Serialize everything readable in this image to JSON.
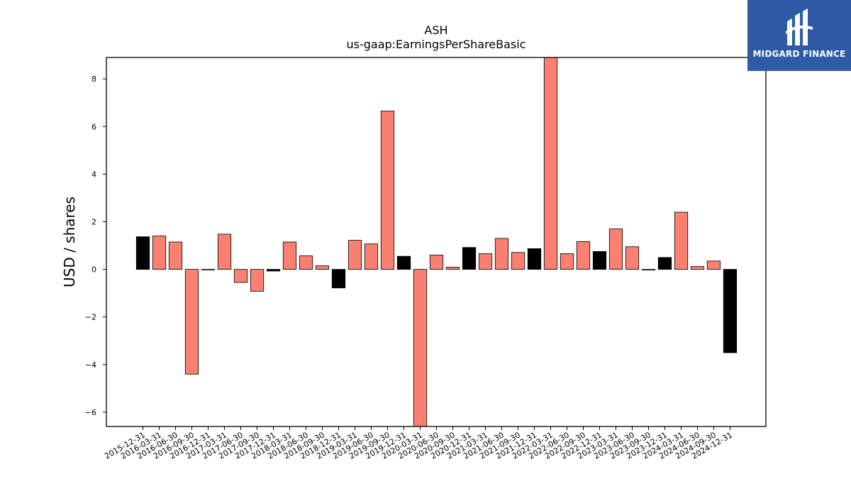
{
  "brand": {
    "name": "MIDGARD FINANCE",
    "background": "#2f5aa8"
  },
  "chart_data": {
    "type": "bar",
    "title": "ASH",
    "subtitle": "us-gaap:EarningsPerShareBasic",
    "xlabel": "",
    "ylabel": "USD / shares",
    "ylim": [
      -6.6,
      8.9
    ],
    "yticks": [
      -6,
      -4,
      -2,
      0,
      2,
      4,
      6,
      8
    ],
    "ytick_labels": [
      "−6",
      "−4",
      "−2",
      "0",
      "2",
      "4",
      "6",
      "8"
    ],
    "grid": false,
    "colors": {
      "quarterly": "#fa8072",
      "annual": "#000000",
      "edge": "#000000"
    },
    "categories": [
      "2015-12-31",
      "2016-03-31",
      "2016-06-30",
      "2016-09-30",
      "2016-12-31",
      "2017-03-31",
      "2017-06-30",
      "2017-09-30",
      "2017-12-31",
      "2018-03-31",
      "2018-06-30",
      "2018-09-30",
      "2018-12-31",
      "2019-03-31",
      "2019-06-30",
      "2019-09-30",
      "2019-12-31",
      "2020-03-31",
      "2020-06-30",
      "2020-09-30",
      "2020-12-31",
      "2021-03-31",
      "2021-06-30",
      "2021-09-30",
      "2021-12-31",
      "2022-03-31",
      "2022-06-30",
      "2022-09-30",
      "2022-12-31",
      "2023-03-31",
      "2023-06-30",
      "2023-09-30",
      "2023-12-31",
      "2024-03-31",
      "2024-06-30",
      "2024-09-30",
      "2024-12-31"
    ],
    "values": [
      1.37,
      1.4,
      1.15,
      -4.4,
      0.0,
      1.48,
      -0.55,
      -0.92,
      -0.07,
      1.15,
      0.57,
      0.15,
      -0.78,
      1.22,
      1.07,
      6.65,
      0.55,
      -6.6,
      0.6,
      0.09,
      0.92,
      0.66,
      1.3,
      0.71,
      0.87,
      8.9,
      0.66,
      1.17,
      0.75,
      1.7,
      0.95,
      -0.03,
      0.5,
      2.4,
      0.12,
      0.35,
      -3.5
    ],
    "bar_color_group": [
      "annual",
      "quarterly",
      "quarterly",
      "quarterly",
      "annual",
      "quarterly",
      "quarterly",
      "quarterly",
      "annual",
      "quarterly",
      "quarterly",
      "quarterly",
      "annual",
      "quarterly",
      "quarterly",
      "quarterly",
      "annual",
      "quarterly",
      "quarterly",
      "quarterly",
      "annual",
      "quarterly",
      "quarterly",
      "quarterly",
      "annual",
      "quarterly",
      "quarterly",
      "quarterly",
      "annual",
      "quarterly",
      "quarterly",
      "quarterly",
      "annual",
      "quarterly",
      "quarterly",
      "quarterly",
      "annual"
    ]
  }
}
